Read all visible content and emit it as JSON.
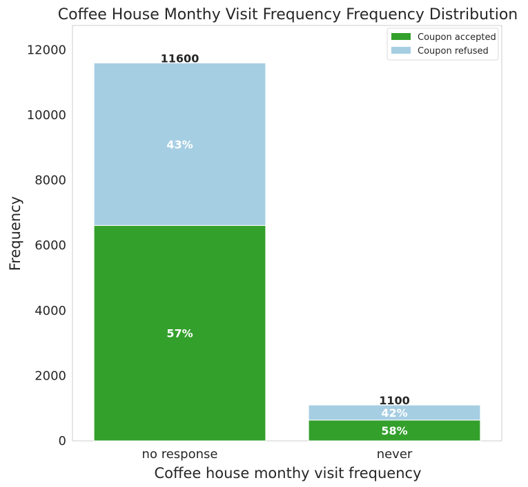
{
  "chart_data": {
    "type": "bar",
    "stacked": true,
    "title": "Coffee House Monthy Visit Frequency Frequency Distribution",
    "xlabel": "Coffee house monthy visit frequency",
    "ylabel": "Frequency",
    "categories": [
      "no response",
      "never"
    ],
    "series": [
      {
        "name": "Coupon accepted",
        "color": "#33a02c",
        "values": [
          6612,
          638
        ],
        "pct_labels": [
          "57%",
          "58%"
        ]
      },
      {
        "name": "Coupon refused",
        "color": "#a6cee3",
        "values": [
          4988,
          462
        ],
        "pct_labels": [
          "43%",
          "42%"
        ]
      }
    ],
    "totals": [
      11600,
      1100
    ],
    "total_labels": [
      "11600",
      "1100"
    ],
    "ylim": [
      0,
      12750
    ],
    "yticks": [
      0,
      2000,
      4000,
      6000,
      8000,
      10000,
      12000
    ],
    "ytick_labels": [
      "0",
      "2000",
      "4000",
      "6000",
      "8000",
      "10000",
      "12000"
    ],
    "grid": false,
    "legend_position": "top-right"
  }
}
